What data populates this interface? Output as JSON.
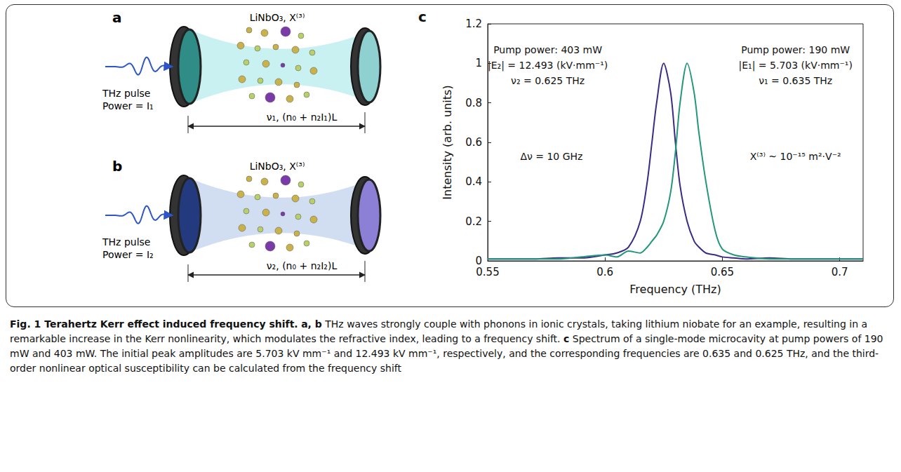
{
  "panels": {
    "a": {
      "label": "a",
      "material": "LiNbO₃, X⁽³⁾",
      "pulse": "THz pulse",
      "power": "Power = I₁",
      "length": "ν₁, (n₀ + n₂I₁)L"
    },
    "b": {
      "label": "b",
      "material": "LiNbO₃, X⁽³⁾",
      "pulse": "THz pulse",
      "power": "Power = I₂",
      "length": "ν₂, (n₀ + n₂I₂)L"
    }
  },
  "chart_data": {
    "label": "c",
    "type": "line",
    "xlabel": "Frequency (THz)",
    "ylabel": "Intensity (arb. units)",
    "x": [
      0.55,
      0.56,
      0.57,
      0.58,
      0.59,
      0.6,
      0.605,
      0.61,
      0.615,
      0.618,
      0.62,
      0.622,
      0.625,
      0.628,
      0.63,
      0.632,
      0.635,
      0.638,
      0.64,
      0.643,
      0.647,
      0.65,
      0.655,
      0.66,
      0.67,
      0.68,
      0.69,
      0.7,
      0.71
    ],
    "series": [
      {
        "color": "#3b2a86",
        "values": [
          0.01,
          0.01,
          0.01,
          0.015,
          0.015,
          0.03,
          0.04,
          0.07,
          0.2,
          0.4,
          0.6,
          0.8,
          1.0,
          0.85,
          0.6,
          0.38,
          0.2,
          0.1,
          0.07,
          0.04,
          0.03,
          0.02,
          0.015,
          0.01,
          0.015,
          0.01,
          0.01,
          0.01,
          0.01
        ]
      },
      {
        "color": "#23977b",
        "values": [
          0.01,
          0.01,
          0.01,
          0.01,
          0.02,
          0.03,
          0.02,
          0.05,
          0.04,
          0.07,
          0.1,
          0.13,
          0.2,
          0.35,
          0.55,
          0.8,
          1.0,
          0.85,
          0.65,
          0.4,
          0.15,
          0.06,
          0.03,
          0.02,
          0.01,
          0.01,
          0.01,
          0.01,
          0.01
        ]
      }
    ],
    "xlim": [
      0.55,
      0.71
    ],
    "xticks": [
      0.55,
      0.6,
      0.65,
      0.7
    ],
    "ylim": [
      0,
      1.2
    ],
    "yticks": [
      0,
      0.2,
      0.4,
      0.6,
      0.8,
      1,
      1.2
    ],
    "grid": false,
    "annotations": {
      "left": [
        "Pump power: 403 mW",
        "|E₂| = 12.493 (kV·mm⁻¹)",
        "ν₂ = 0.625 THz"
      ],
      "right": [
        "Pump power: 190 mW",
        "|E₁| = 5.703 (kV·mm⁻¹)",
        "ν₁ = 0.635 THz"
      ],
      "shift": "Δν = 10 GHz",
      "susceptibility": "X⁽³⁾ ~ 10⁻¹⁵ m²·V⁻²"
    }
  },
  "caption": {
    "title": "Fig. 1 Terahertz Kerr effect induced frequency shift.",
    "parts": [
      {
        "label": "a, b",
        "text": "THz waves strongly couple with phonons in ionic crystals, taking lithium niobate for an example, resulting in a remarkable increase in the Kerr nonlinearity, which modulates the refractive index, leading to a frequency shift."
      },
      {
        "label": "c",
        "text": "Spectrum of a single-mode microcavity at pump powers of 190 mW and 403 mW. The initial peak amplitudes are 5.703 kV mm⁻¹ and 12.493 kV mm⁻¹, respectively, and the corresponding frequencies are 0.635 and 0.625 THz, and the third-order nonlinear optical susceptibility can be calculated from the frequency shift"
      }
    ]
  }
}
